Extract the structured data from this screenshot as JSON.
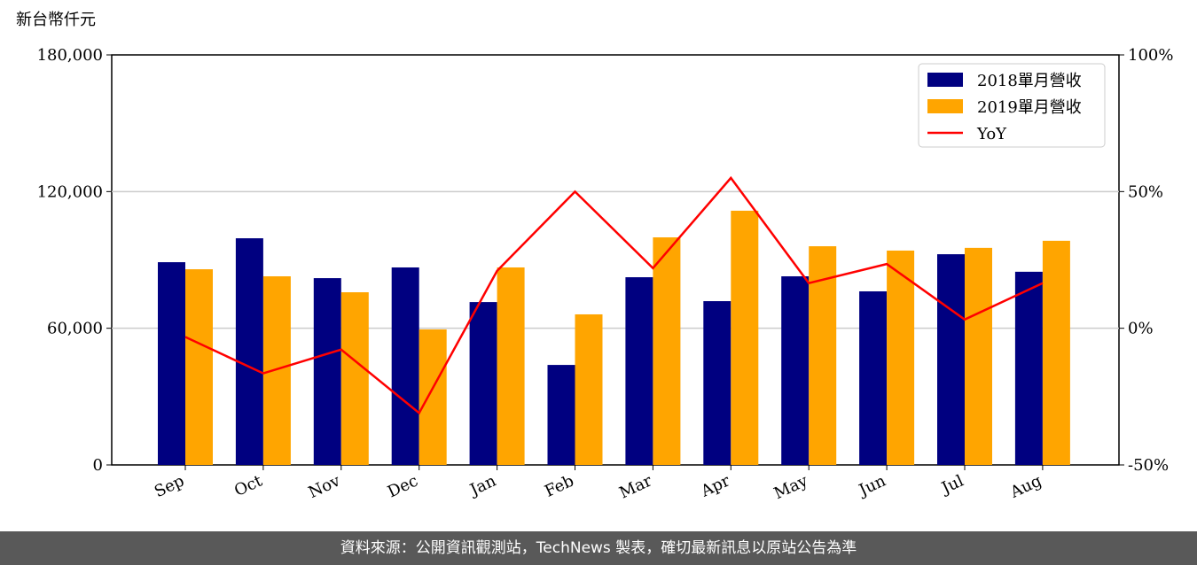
{
  "chart_data": {
    "type": "bar_line",
    "ylabel": "新台幣仟元",
    "source": "資料來源：公開資訊觀測站，TechNews 製表，確切最新訊息以原站公告為準",
    "categories": [
      "Sep",
      "Oct",
      "Nov",
      "Dec",
      "Jan",
      "Feb",
      "Mar",
      "Apr",
      "May",
      "Jun",
      "Jul",
      "Aug"
    ],
    "series": [
      {
        "name": "2018單月營收",
        "type": "bar",
        "color": "#000080",
        "values": [
          89000,
          99500,
          82000,
          86700,
          71500,
          43900,
          82400,
          71900,
          82800,
          76200,
          92500,
          84800
        ]
      },
      {
        "name": "2019單月營收",
        "type": "bar",
        "color": "#ffa500",
        "values": [
          85900,
          82800,
          75800,
          59500,
          86700,
          66100,
          99900,
          111600,
          96000,
          94100,
          95300,
          98400
        ]
      },
      {
        "name": "YoY",
        "type": "line",
        "axis": "y2",
        "color": "#ff0000",
        "values": [
          -3.2,
          -16.5,
          -7.8,
          -31,
          21,
          50,
          22,
          55,
          16.5,
          23.5,
          3.2,
          16.5
        ]
      }
    ],
    "ylim": [
      0,
      180000
    ],
    "yticks": [
      0,
      {
        "value": 60000,
        "label": "60,000"
      },
      {
        "value": 120000,
        "label": "120,000"
      },
      {
        "value": 180000,
        "label": "180,000"
      }
    ],
    "y2lim": [
      -50,
      100
    ],
    "y2ticks": [
      {
        "value": -50,
        "label": "-50%"
      },
      {
        "value": 0,
        "label": "0%"
      },
      {
        "value": 50,
        "label": "50%"
      },
      {
        "value": 100,
        "label": "100%"
      }
    ],
    "grid": true,
    "legend": "upper right"
  }
}
